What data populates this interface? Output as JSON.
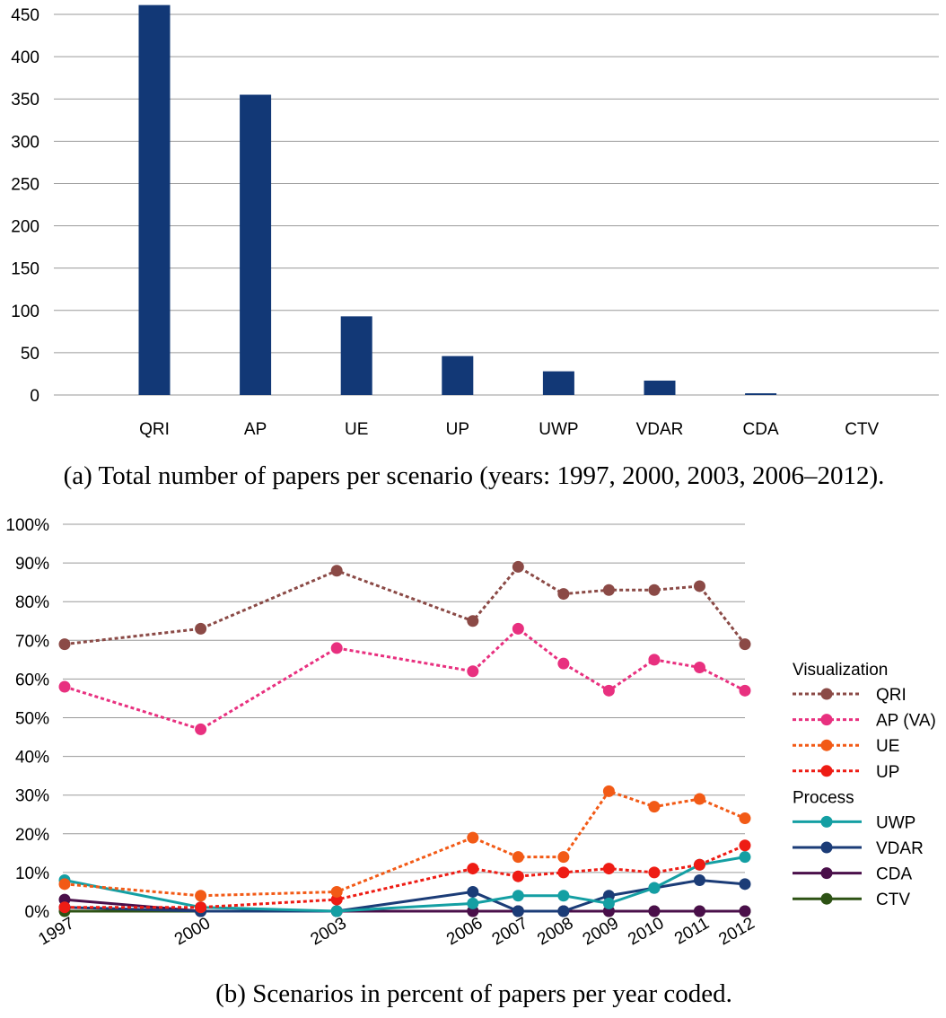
{
  "chart_data": [
    {
      "type": "bar",
      "caption": "(a) Total number of papers per scenario (years: 1997, 2000, 2003, 2006–2012).",
      "categories": [
        "QRI",
        "AP",
        "UE",
        "UP",
        "UWP",
        "VDAR",
        "CDA",
        "CTV"
      ],
      "values": [
        461,
        355,
        93,
        46,
        28,
        17,
        2,
        0
      ],
      "ylim": [
        0,
        450
      ],
      "yticks": [
        "0",
        "50",
        "100",
        "150",
        "200",
        "250",
        "300",
        "350",
        "400",
        "450"
      ],
      "grid": true,
      "color": "#123876"
    },
    {
      "type": "line",
      "caption": "(b) Scenarios in percent of papers per year coded.",
      "x": [
        "1997",
        "2000",
        "2003",
        "2006",
        "2007",
        "2008",
        "2009",
        "2010",
        "2011",
        "2012"
      ],
      "yticks": [
        "0%",
        "10%",
        "20%",
        "30%",
        "40%",
        "50%",
        "60%",
        "70%",
        "80%",
        "90%",
        "100%"
      ],
      "ylim": [
        0,
        100
      ],
      "grid": true,
      "legend_position": "right",
      "legend_groups": [
        {
          "title": "Visualization",
          "series": [
            {
              "name": "QRI",
              "color": "#8b4a46",
              "dash": "dotted",
              "values": [
                69,
                73,
                88,
                75,
                89,
                82,
                83,
                83,
                84,
                69
              ]
            },
            {
              "name": "AP (VA)",
              "color": "#e8307f",
              "dash": "dotted",
              "values": [
                58,
                47,
                68,
                62,
                73,
                64,
                57,
                65,
                63,
                57
              ]
            },
            {
              "name": "UE",
              "color": "#f25a16",
              "dash": "dotted",
              "values": [
                7,
                4,
                5,
                19,
                14,
                14,
                31,
                27,
                29,
                24
              ]
            },
            {
              "name": "UP",
              "color": "#ee1c14",
              "dash": "dotted",
              "values": [
                1,
                1,
                3,
                11,
                9,
                10,
                11,
                10,
                12,
                17
              ]
            }
          ]
        },
        {
          "title": "Process",
          "series": [
            {
              "name": "UWP",
              "color": "#149fa3",
              "dash": "solid",
              "values": [
                8,
                1,
                0,
                2,
                4,
                4,
                2,
                6,
                12,
                14
              ]
            },
            {
              "name": "VDAR",
              "color": "#1b3c77",
              "dash": "solid",
              "values": [
                1,
                0,
                0,
                5,
                0,
                0,
                4,
                6,
                8,
                7
              ]
            },
            {
              "name": "CDA",
              "color": "#4a0f4a",
              "dash": "solid",
              "values": [
                3,
                0,
                0,
                0,
                0,
                0,
                0,
                0,
                0,
                0
              ]
            },
            {
              "name": "CTV",
              "color": "#2d5214",
              "dash": "solid",
              "values": [
                0,
                0,
                0,
                0,
                0,
                0,
                0,
                0,
                0,
                0
              ]
            }
          ]
        }
      ]
    }
  ]
}
